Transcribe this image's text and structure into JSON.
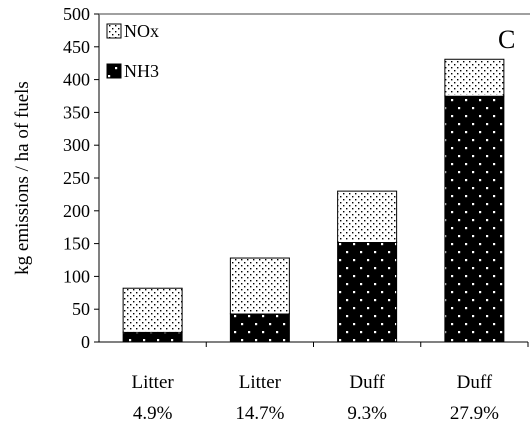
{
  "chart_data": {
    "type": "bar",
    "stacked": true,
    "panel_label": "C",
    "ylabel": "kg emissions / ha of fuels",
    "xlabel": "",
    "ylim": [
      0,
      500
    ],
    "yticks": [
      0,
      50,
      100,
      150,
      200,
      250,
      300,
      350,
      400,
      450,
      500
    ],
    "grid": false,
    "legend_position": "top-left",
    "categories": [
      {
        "line1": "Litter",
        "line2": "4.9%"
      },
      {
        "line1": "Litter",
        "line2": "14.7%"
      },
      {
        "line1": "Duff",
        "line2": "9.3%"
      },
      {
        "line1": "Duff",
        "line2": "27.9%"
      }
    ],
    "series": [
      {
        "name": "NH3",
        "pattern": "dense-black-dotted",
        "color": "#000000",
        "values": [
          15,
          43,
          152,
          375
        ]
      },
      {
        "name": "NOx",
        "pattern": "sparse-dotted",
        "color": "#ffffff",
        "values": [
          67,
          85,
          78,
          56
        ]
      }
    ],
    "legend_order": [
      1,
      0
    ]
  }
}
